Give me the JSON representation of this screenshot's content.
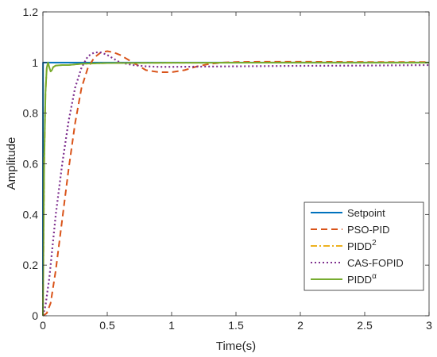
{
  "chart_data": {
    "type": "line",
    "title": "",
    "xlabel": "Time(s)",
    "ylabel": "Amplitude",
    "xlim": [
      0,
      3
    ],
    "ylim": [
      0,
      1.2
    ],
    "x_ticks": [
      0,
      0.5,
      1,
      1.5,
      2,
      2.5,
      3
    ],
    "x_tick_labels": [
      "0",
      "0.5",
      "1",
      "1.5",
      "2",
      "2.5",
      "3"
    ],
    "y_ticks": [
      0,
      0.2,
      0.4,
      0.6,
      0.8,
      1,
      1.2
    ],
    "y_tick_labels": [
      "0",
      "0.2",
      "0.4",
      "0.6",
      "0.8",
      "1",
      "1.2"
    ],
    "grid": false,
    "legend_position": "bottom-right",
    "series": [
      {
        "name": "Setpoint",
        "legend_base": "Setpoint",
        "legend_sup": "",
        "color": "#0072BD",
        "dash": "solid",
        "x": [
          0,
          0.001,
          3
        ],
        "y": [
          0,
          1,
          1
        ]
      },
      {
        "name": "PSO-PID",
        "legend_base": "PSO-PID",
        "legend_sup": "",
        "color": "#D95319",
        "dash": "dashed",
        "x": [
          0,
          0.03,
          0.06,
          0.1,
          0.15,
          0.2,
          0.25,
          0.3,
          0.35,
          0.4,
          0.45,
          0.5,
          0.55,
          0.6,
          0.7,
          0.8,
          0.9,
          1.0,
          1.1,
          1.2,
          1.3,
          1.4,
          1.5,
          1.7,
          2.0,
          2.5,
          3.0
        ],
        "y": [
          0,
          0.01,
          0.05,
          0.18,
          0.38,
          0.58,
          0.76,
          0.9,
          0.98,
          1.02,
          1.04,
          1.045,
          1.04,
          1.03,
          1.0,
          0.97,
          0.962,
          0.962,
          0.97,
          0.985,
          0.995,
          1.0,
          1.002,
          1.003,
          1.003,
          1.002,
          1.002
        ]
      },
      {
        "name": "PIDD2",
        "legend_base": "PIDD",
        "legend_sup": "2",
        "color": "#EDB120",
        "dash": "dashdot",
        "x": [
          0,
          0.005,
          0.01,
          0.02,
          0.03,
          0.04,
          0.05,
          0.06,
          0.07,
          0.08,
          0.1,
          0.15,
          0.2,
          0.3,
          0.5,
          1.0,
          2.0,
          3.0
        ],
        "y": [
          0,
          0.3,
          0.6,
          0.88,
          0.98,
          1.0,
          0.98,
          0.965,
          0.97,
          0.982,
          0.988,
          0.99,
          0.99,
          0.995,
          0.998,
          0.999,
          1.0,
          1.0
        ]
      },
      {
        "name": "CAS-FOPID",
        "legend_base": "CAS-FOPID",
        "legend_sup": "",
        "color": "#7E2F8E",
        "dash": "dotted",
        "x": [
          0,
          0.02,
          0.05,
          0.08,
          0.1,
          0.15,
          0.2,
          0.25,
          0.3,
          0.35,
          0.4,
          0.45,
          0.5,
          0.55,
          0.6,
          0.7,
          0.8,
          0.9,
          1.0,
          1.5,
          2.0,
          2.5,
          3.0
        ],
        "y": [
          0,
          0.04,
          0.15,
          0.3,
          0.4,
          0.6,
          0.77,
          0.9,
          0.98,
          1.025,
          1.04,
          1.04,
          1.03,
          1.015,
          1.0,
          0.99,
          0.985,
          0.983,
          0.983,
          0.985,
          0.987,
          0.988,
          0.99
        ]
      },
      {
        "name": "PIDDα",
        "legend_base": "PIDD",
        "legend_sup": "α",
        "color": "#77AC30",
        "dash": "solid",
        "x": [
          0,
          0.005,
          0.01,
          0.02,
          0.03,
          0.04,
          0.05,
          0.06,
          0.07,
          0.08,
          0.1,
          0.15,
          0.2,
          0.3,
          0.5,
          1.0,
          2.0,
          3.0
        ],
        "y": [
          0,
          0.3,
          0.6,
          0.88,
          0.98,
          1.0,
          0.98,
          0.965,
          0.97,
          0.982,
          0.988,
          0.99,
          0.99,
          0.995,
          0.998,
          0.999,
          1.0,
          1.0
        ]
      }
    ]
  }
}
